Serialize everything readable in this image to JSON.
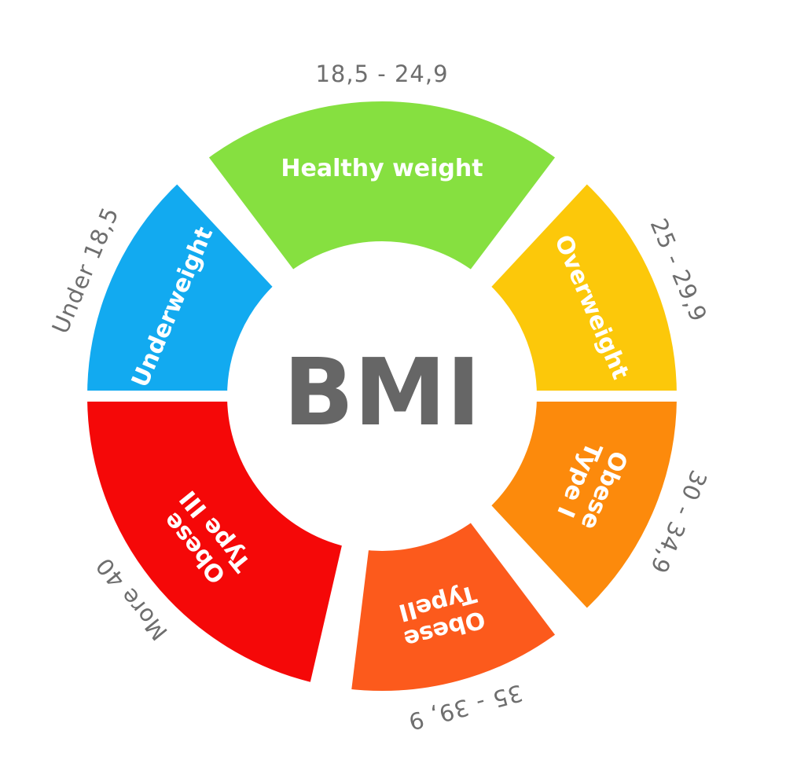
{
  "title": "BMI",
  "segments": [
    {
      "id": "underweight",
      "name_lines": [
        "Underweight"
      ],
      "range": "Under 18,5",
      "color": "#12aaf0"
    },
    {
      "id": "healthy",
      "name_lines": [
        "Healthy weight"
      ],
      "range": "18,5 - 24,9",
      "color": "#86e040"
    },
    {
      "id": "overweight",
      "name_lines": [
        "Overweight"
      ],
      "range": "25 - 29,9",
      "color": "#fcc80a"
    },
    {
      "id": "obese-type-1",
      "name_lines": [
        "Obese",
        "Type I"
      ],
      "range": "30 - 34,9",
      "color": "#fc8a0c"
    },
    {
      "id": "obese-type-2",
      "name_lines": [
        "Obese",
        "TypeII"
      ],
      "range": "35 - 39, 9",
      "color": "#fc5a1c"
    },
    {
      "id": "obese-type-3",
      "name_lines": [
        "Obese",
        "Type III"
      ],
      "range": "More 40",
      "color": "#f50808"
    }
  ]
}
